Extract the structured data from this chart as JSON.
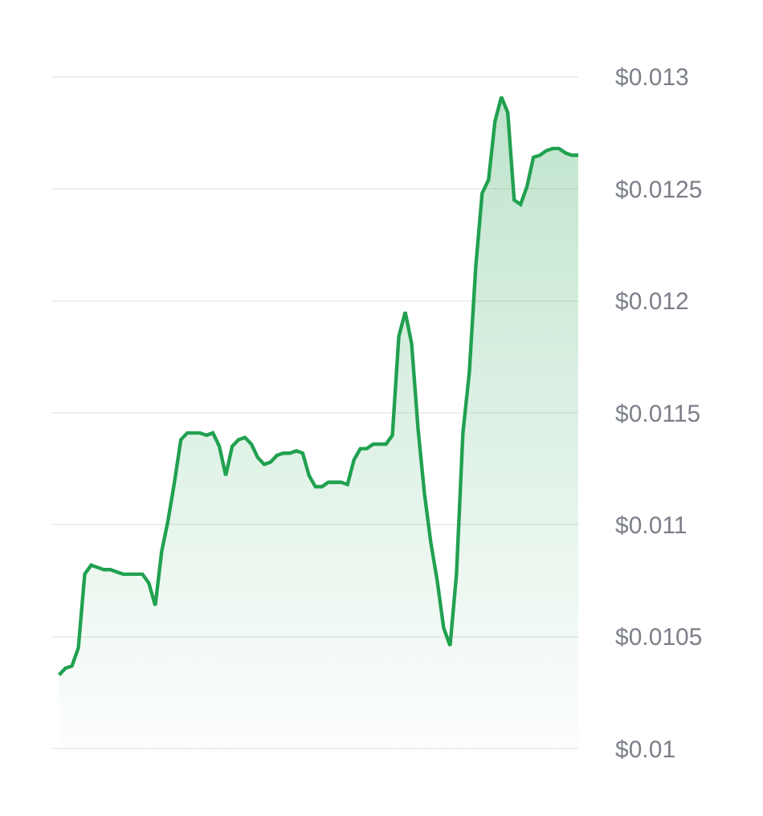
{
  "chart_data": {
    "type": "area",
    "categories": [
      null,
      null,
      null,
      null,
      null,
      null,
      null,
      null,
      null,
      null,
      null,
      null,
      null,
      null,
      null,
      null,
      null,
      null,
      null,
      null,
      null,
      null,
      null,
      null,
      null,
      null,
      null,
      null,
      null,
      null,
      null,
      null,
      null,
      null,
      null,
      null,
      null,
      null,
      null,
      null,
      null,
      null,
      null,
      null,
      null,
      null,
      null,
      null,
      null,
      null,
      null,
      null,
      null,
      null,
      null,
      null,
      null,
      null,
      null,
      null,
      null,
      null,
      null,
      null,
      null,
      null,
      null,
      null,
      null,
      null,
      null,
      null,
      null,
      null,
      null,
      null,
      null,
      null,
      null,
      null,
      null,
      null
    ],
    "series": [
      {
        "color": "#21a150",
        "values": [
          0.01033,
          0.01036,
          0.01037,
          0.01045,
          0.01078,
          0.01082,
          0.01081,
          0.0108,
          0.0108,
          0.01079,
          0.01078,
          0.01078,
          0.01078,
          0.01078,
          0.01074,
          0.01064,
          0.01088,
          0.01102,
          0.01119,
          0.01138,
          0.01141,
          0.01141,
          0.01141,
          0.0114,
          0.01141,
          0.01135,
          0.01122,
          0.01135,
          0.01138,
          0.01139,
          0.01136,
          0.0113,
          0.01127,
          0.01128,
          0.01131,
          0.01132,
          0.01132,
          0.01133,
          0.01132,
          0.01122,
          0.01117,
          0.01117,
          0.01119,
          0.01119,
          0.01119,
          0.01118,
          0.01129,
          0.01134,
          0.01134,
          0.01136,
          0.01136,
          0.01136,
          0.0114,
          0.01184,
          0.01195,
          0.01181,
          0.01143,
          0.01114,
          0.01092,
          0.01075,
          0.01054,
          0.01046,
          0.01078,
          0.01141,
          0.01168,
          0.01215,
          0.01248,
          0.01254,
          0.0128,
          0.01291,
          0.01284,
          0.01245,
          0.01243,
          0.01251,
          0.01264,
          0.01265,
          0.01267,
          0.01268,
          0.01268,
          0.01266,
          0.01265,
          0.01265
        ]
      }
    ],
    "ylim": [
      0.00998,
      0.01302
    ],
    "yticks": [
      {
        "value": 0.01,
        "label": "$0.01"
      },
      {
        "value": 0.0105,
        "label": "$0.0105"
      },
      {
        "value": 0.011,
        "label": "$0.011"
      },
      {
        "value": 0.0115,
        "label": "$0.0115"
      },
      {
        "value": 0.012,
        "label": "$0.012"
      },
      {
        "value": 0.0125,
        "label": "$0.0125"
      },
      {
        "value": 0.013,
        "label": "$0.013"
      }
    ],
    "grid": "y",
    "tick_labels": "y"
  }
}
